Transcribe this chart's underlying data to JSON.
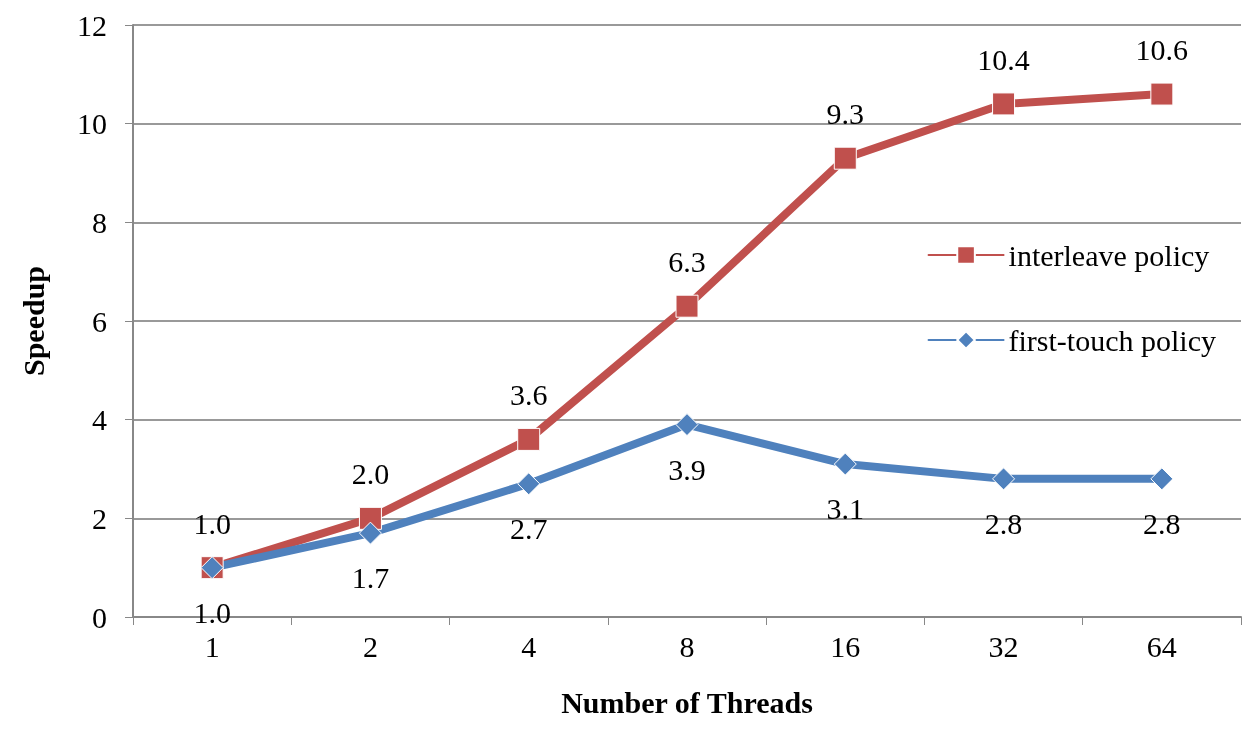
{
  "chart_data": {
    "type": "line",
    "xlabel": "Number of Threads",
    "ylabel": "Speedup",
    "categories": [
      "1",
      "2",
      "4",
      "8",
      "16",
      "32",
      "64"
    ],
    "series": [
      {
        "name": "interleave policy",
        "color": "#c0504d",
        "marker": "square",
        "values": [
          1.0,
          2.0,
          3.6,
          6.3,
          9.3,
          10.4,
          10.6
        ],
        "value_labels": [
          "1.0",
          "2.0",
          "3.6",
          "6.3",
          "9.3",
          "10.4",
          "10.6"
        ]
      },
      {
        "name": "first-touch policy",
        "color": "#4f81bd",
        "marker": "diamond",
        "values": [
          1.0,
          1.7,
          2.7,
          3.9,
          3.1,
          2.8,
          2.8
        ],
        "value_labels": [
          "1.0",
          "1.7",
          "2.7",
          "3.9",
          "3.1",
          "2.8",
          "2.8"
        ]
      }
    ],
    "ylim": [
      0,
      12
    ],
    "yticks": [
      0,
      2,
      4,
      6,
      8,
      10,
      12
    ],
    "grid": "y",
    "legend": "right",
    "line_style": "solid"
  }
}
